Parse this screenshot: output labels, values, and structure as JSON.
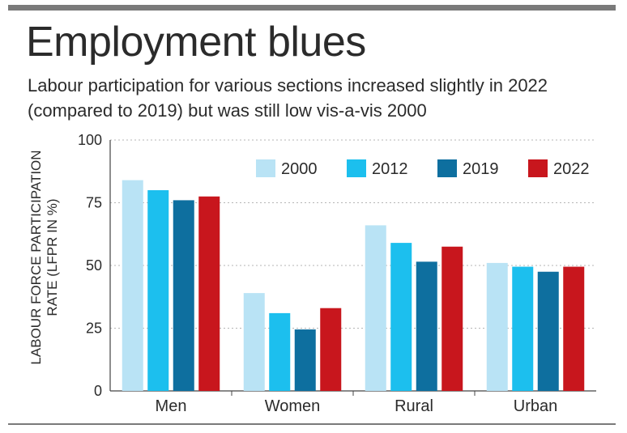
{
  "title": "Employment blues",
  "subtitle": "Labour participation for various sections increased slightly in 2022 (compared to 2019) but was still low vis-a-vis 2000",
  "chart_data": {
    "type": "bar",
    "ylabel_line1": "LABOUR FORCE PARTICIPATION",
    "ylabel_line2": "RATE (LFPR IN %)",
    "xlabel": "",
    "ylim": [
      0,
      100
    ],
    "yticks": [
      0,
      25,
      50,
      75,
      100
    ],
    "grid": true,
    "legend_position": "top-right",
    "categories": [
      "Men",
      "Women",
      "Rural",
      "Urban"
    ],
    "series": [
      {
        "name": "2000",
        "color": "#b9e3f5",
        "values": [
          84,
          39,
          66,
          51
        ]
      },
      {
        "name": "2012",
        "color": "#1cbfee",
        "values": [
          80,
          31,
          59,
          49.5
        ]
      },
      {
        "name": "2019",
        "color": "#0e6f9f",
        "values": [
          76,
          24.5,
          51.5,
          47.5
        ]
      },
      {
        "name": "2022",
        "color": "#c8161d",
        "values": [
          77.5,
          33,
          57.5,
          49.5
        ]
      }
    ]
  }
}
